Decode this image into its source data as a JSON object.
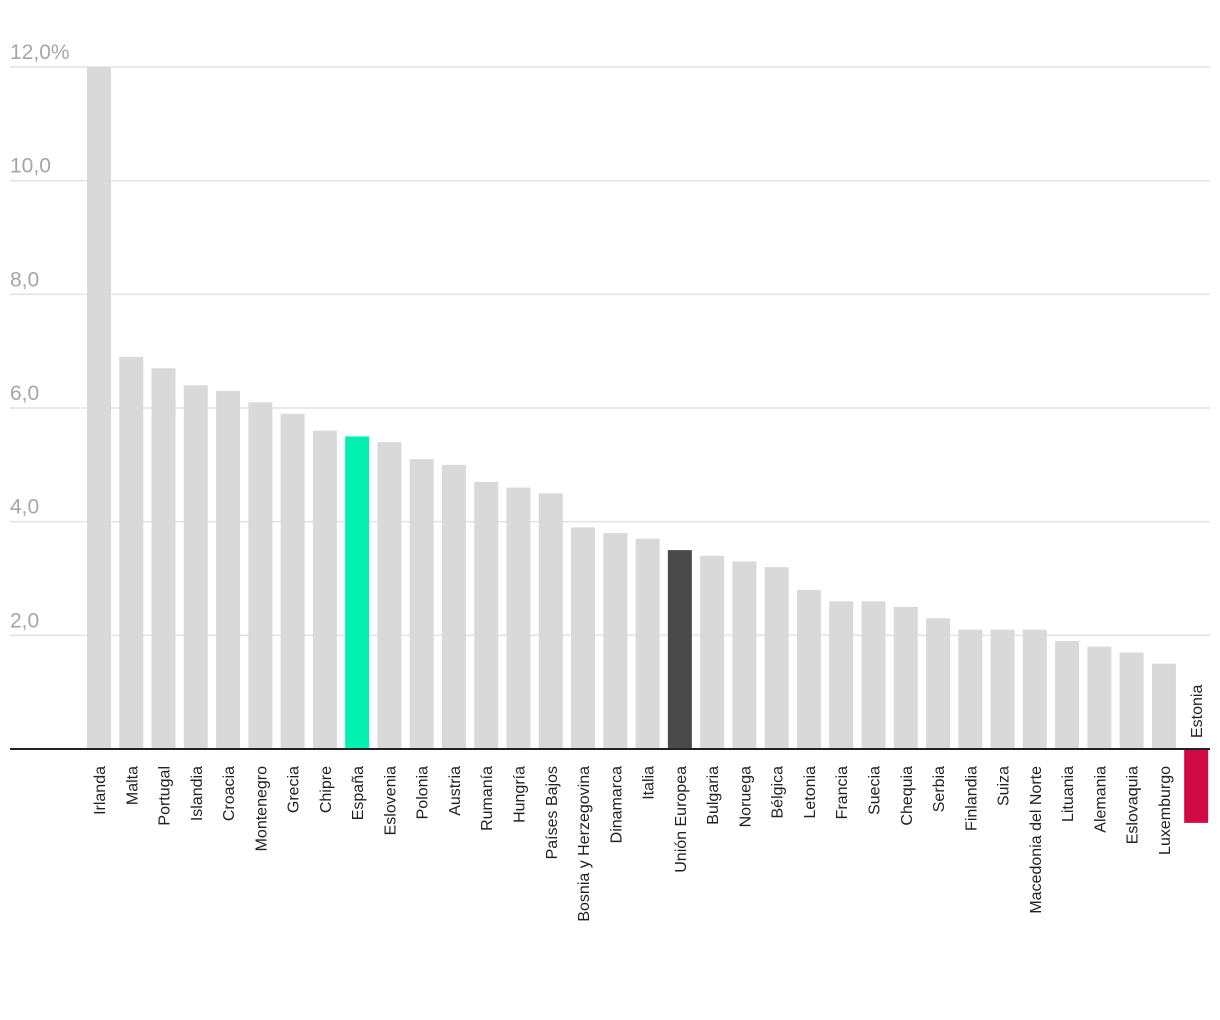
{
  "chart_data": {
    "type": "bar",
    "title": "",
    "xlabel": "",
    "ylabel": "",
    "ylim": [
      -1.3,
      12.0
    ],
    "yticks": [
      {
        "value": 12,
        "label": "12,0%"
      },
      {
        "value": 10,
        "label": "10,0"
      },
      {
        "value": 8,
        "label": "8,0"
      },
      {
        "value": 6,
        "label": "6,0"
      },
      {
        "value": 4,
        "label": "4,0"
      },
      {
        "value": 2,
        "label": "2,0"
      }
    ],
    "grid": true,
    "categories": [
      "Irlanda",
      "Malta",
      "Portugal",
      "Islandia",
      "Croacia",
      "Montenegro",
      "Grecia",
      "Chipre",
      "España",
      "Eslovenia",
      "Polonia",
      "Austria",
      "Rumanía",
      "Hungría",
      "Países Bajos",
      "Bosnia y Herzegovina",
      "Dinamarca",
      "Italia",
      "Unión Europea",
      "Bulgaria",
      "Noruega",
      "Bélgica",
      "Letonia",
      "Francia",
      "Suecia",
      "Chequia",
      "Serbia",
      "Finlandia",
      "Suiza",
      "Macedonia del Norte",
      "Lituania",
      "Alemania",
      "Eslovaquia",
      "Luxemburgo",
      "Estonia"
    ],
    "values": [
      12.0,
      6.9,
      6.7,
      6.4,
      6.3,
      6.1,
      5.9,
      5.6,
      5.5,
      5.4,
      5.1,
      5.0,
      4.7,
      4.6,
      4.5,
      3.9,
      3.8,
      3.7,
      3.5,
      3.4,
      3.3,
      3.2,
      2.8,
      2.6,
      2.6,
      2.5,
      2.3,
      2.1,
      2.1,
      2.1,
      1.9,
      1.8,
      1.7,
      1.5,
      -1.3
    ],
    "colors": {
      "default": "#d9d9d9",
      "highlight": {
        "España": "#00f0b0",
        "Unión Europea": "#4a4a4a",
        "Estonia": "#d10a45"
      }
    }
  }
}
